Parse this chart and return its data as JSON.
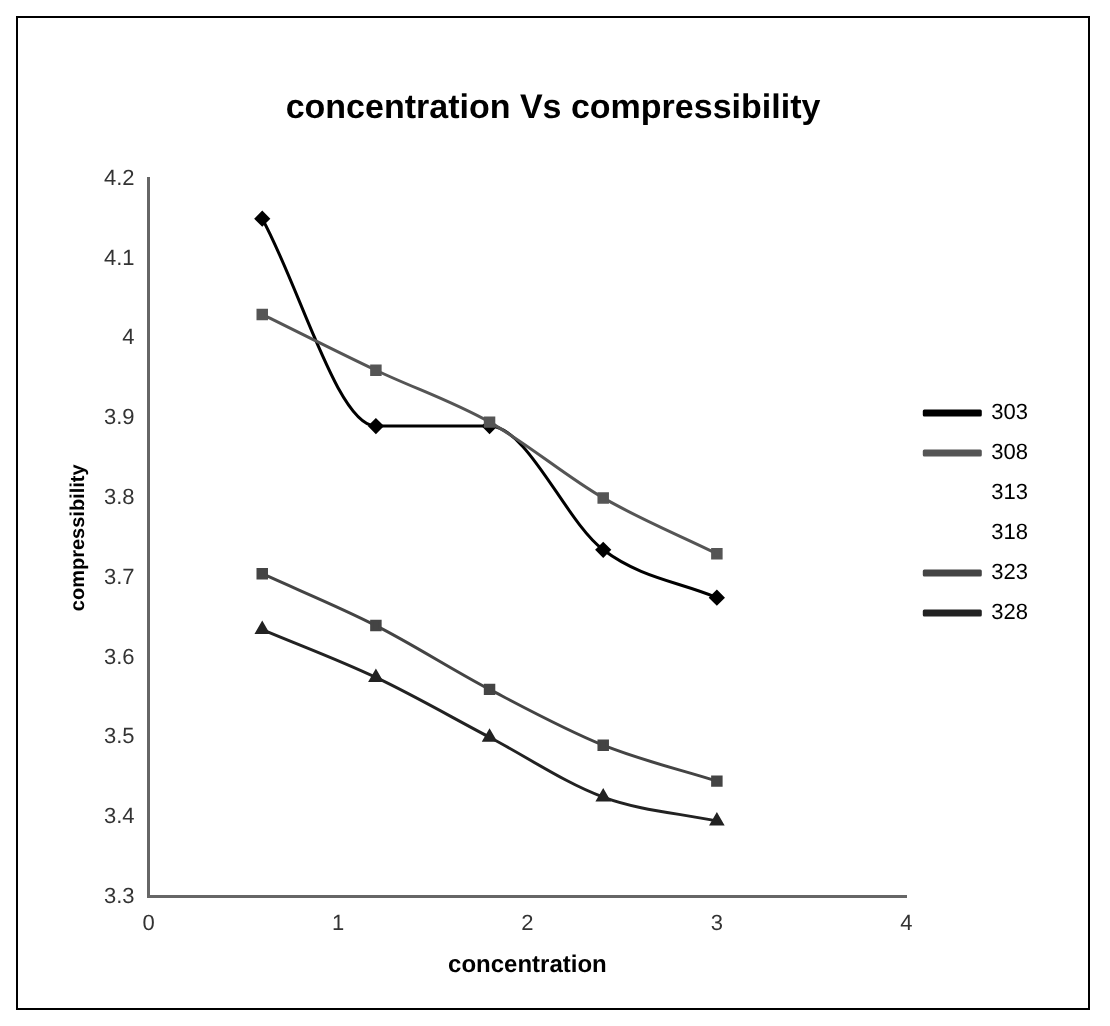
{
  "chart_data": {
    "type": "line",
    "title": "concentration Vs compressibility",
    "xlabel": "concentration",
    "ylabel": "compressibility",
    "x": [
      0.6,
      1.2,
      1.8,
      2.4,
      3.0
    ],
    "series": [
      {
        "name": "303",
        "color": "#000000",
        "marker": "diamond",
        "values": [
          4.15,
          3.89,
          3.89,
          3.735,
          3.675
        ]
      },
      {
        "name": "308",
        "color": "#555555",
        "marker": "square",
        "values": [
          4.03,
          3.96,
          3.895,
          3.8,
          3.73
        ]
      },
      {
        "name": "313",
        "values": [
          null,
          null,
          null,
          null,
          null
        ]
      },
      {
        "name": "318",
        "values": [
          null,
          null,
          null,
          null,
          null
        ]
      },
      {
        "name": "323",
        "color": "#444444",
        "marker": "square",
        "values": [
          3.705,
          3.64,
          3.56,
          3.49,
          3.445
        ]
      },
      {
        "name": "328",
        "color": "#222222",
        "marker": "triangle",
        "values": [
          3.635,
          3.575,
          3.5,
          3.425,
          3.395
        ]
      }
    ],
    "xlim": [
      0,
      4
    ],
    "xticks": [
      0,
      1,
      2,
      3,
      4
    ],
    "ylim": [
      3.3,
      4.2
    ],
    "yticks": [
      3.3,
      3.4,
      3.5,
      3.6,
      3.7,
      3.8,
      3.9,
      4,
      4.1,
      4.2
    ],
    "grid": false,
    "legend": "right"
  }
}
